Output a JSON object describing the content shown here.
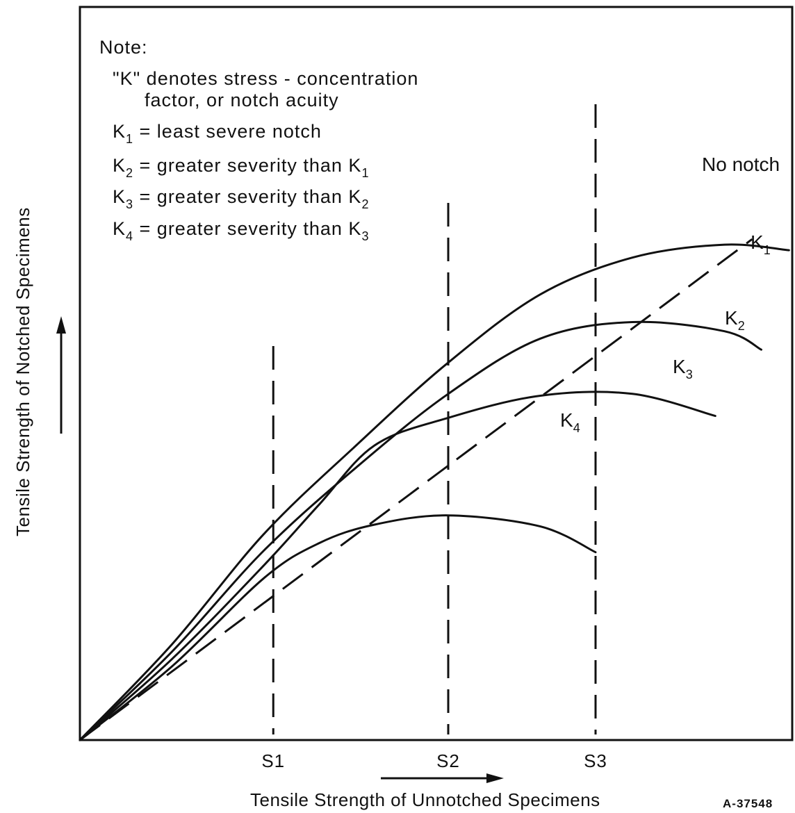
{
  "chart_data": {
    "type": "line",
    "xlabel": "Tensile Strength of Unnotched Specimens",
    "ylabel": "Tensile Strength of Notched Specimens",
    "x_ticks": [
      "S1",
      "S2",
      "S3"
    ],
    "figure_id": "A-37548",
    "note": {
      "title": "Note:",
      "lines": [
        "\"K\" denotes stress - concentration",
        "factor, or notch acuity"
      ],
      "definitions": [
        {
          "base": "K",
          "sub": "1",
          "rest": "= least severe notch"
        },
        {
          "base": "K",
          "sub": "2",
          "rest": "= greater severity than K",
          "rest_sub": "1"
        },
        {
          "base": "K",
          "sub": "3",
          "rest": "= greater severity than K",
          "rest_sub": "2"
        },
        {
          "base": "K",
          "sub": "4",
          "rest": "= greater severity than K",
          "rest_sub": "3"
        }
      ]
    },
    "series": [
      {
        "name": "No notch",
        "label_base": "No notch",
        "label_sub": "",
        "style": "dashed",
        "points": [
          [
            0,
            0
          ],
          [
            1,
            0.745
          ],
          [
            2,
            1.49
          ],
          [
            3,
            2.235
          ],
          [
            3.65,
            2.72
          ]
        ]
      },
      {
        "name": "K1",
        "label_base": "K",
        "label_sub": "1",
        "style": "solid",
        "points": [
          [
            0,
            0
          ],
          [
            0.5,
            0.52
          ],
          [
            1,
            1.12
          ],
          [
            1.5,
            1.6
          ],
          [
            2,
            2.05
          ],
          [
            2.5,
            2.42
          ],
          [
            3,
            2.62
          ],
          [
            3.5,
            2.69
          ],
          [
            3.85,
            2.66
          ]
        ]
      },
      {
        "name": "K2",
        "label_base": "K",
        "label_sub": "2",
        "style": "solid",
        "points": [
          [
            0,
            0
          ],
          [
            0.5,
            0.48
          ],
          [
            1,
            1.03
          ],
          [
            1.5,
            1.48
          ],
          [
            2,
            1.88
          ],
          [
            2.5,
            2.18
          ],
          [
            3,
            2.27
          ],
          [
            3.5,
            2.22
          ],
          [
            3.7,
            2.12
          ]
        ]
      },
      {
        "name": "K3",
        "label_base": "K",
        "label_sub": "3",
        "style": "solid",
        "points": [
          [
            0,
            0
          ],
          [
            0.5,
            0.44
          ],
          [
            1,
            0.95
          ],
          [
            1.3,
            1.28
          ],
          [
            1.6,
            1.6
          ],
          [
            2,
            1.75
          ],
          [
            2.5,
            1.87
          ],
          [
            3,
            1.88
          ],
          [
            3.45,
            1.76
          ]
        ]
      },
      {
        "name": "K4",
        "label_base": "K",
        "label_sub": "4",
        "style": "solid",
        "points": [
          [
            0,
            0
          ],
          [
            0.5,
            0.4
          ],
          [
            1,
            0.88
          ],
          [
            1.3,
            1.07
          ],
          [
            1.6,
            1.17
          ],
          [
            2,
            1.22
          ],
          [
            2.5,
            1.16
          ],
          [
            2.8,
            1.02
          ]
        ]
      }
    ],
    "xlim": [
      0,
      3.9
    ],
    "ylim": [
      0,
      3.4
    ],
    "grid": false,
    "legend": "top-left"
  }
}
